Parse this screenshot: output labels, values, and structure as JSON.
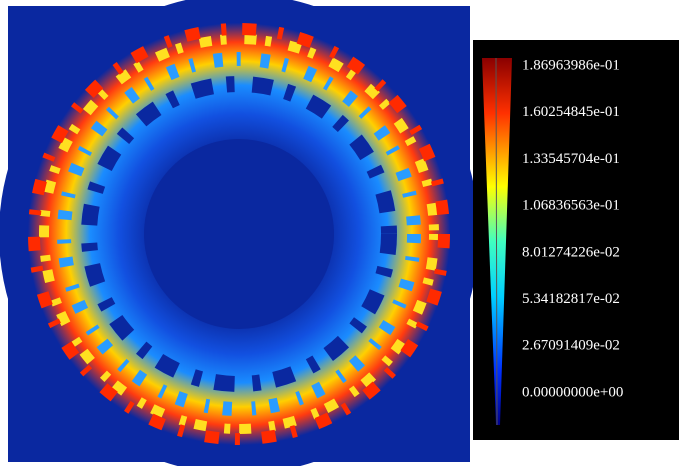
{
  "colorbar": {
    "ticks": [
      {
        "value": 0.186963986,
        "label": "1.86963986e-01"
      },
      {
        "value": 0.160254845,
        "label": "1.60254845e-01"
      },
      {
        "value": 0.133545704,
        "label": "1.33545704e-01"
      },
      {
        "value": 0.106836563,
        "label": "1.06836563e-01"
      },
      {
        "value": 0.0801274226,
        "label": "8.01274226e-02"
      },
      {
        "value": 0.0534182817,
        "label": "5.34182817e-02"
      },
      {
        "value": 0.0267091409,
        "label": "2.67091409e-02"
      },
      {
        "value": 0,
        "label": "0.00000000e+00"
      }
    ]
  }
}
